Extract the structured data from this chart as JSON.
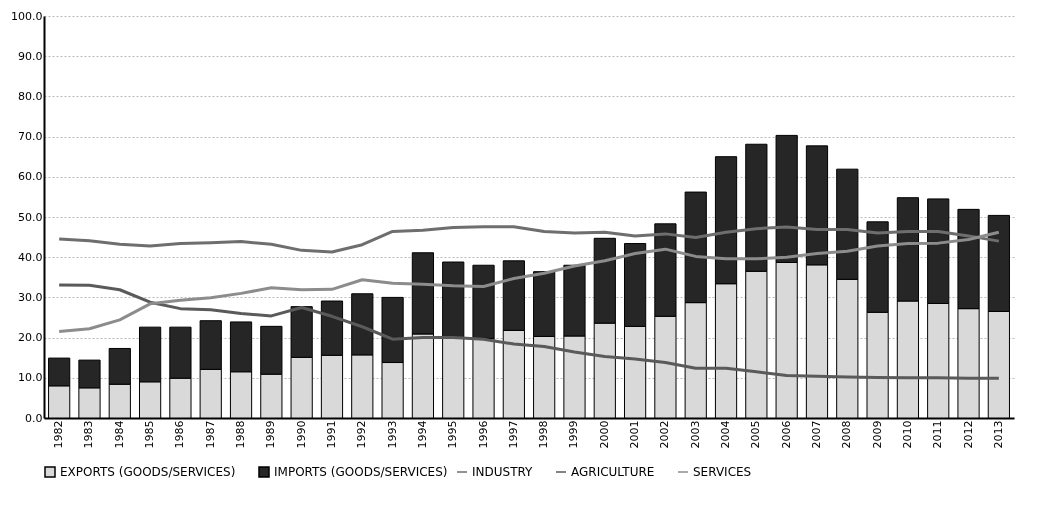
{
  "chart_data": {
    "type": "bar",
    "stacked": true,
    "categories": [
      "1982",
      "1983",
      "1984",
      "1985",
      "1986",
      "1987",
      "1988",
      "1989",
      "1990",
      "1991",
      "1992",
      "1993",
      "1994",
      "1995",
      "1996",
      "1997",
      "1998",
      "1999",
      "2000",
      "2001",
      "2002",
      "2003",
      "2004",
      "2005",
      "2006",
      "2007",
      "2008",
      "2009",
      "2010",
      "2011",
      "2012",
      "2013"
    ],
    "series": [
      {
        "name": "EXPORTS (GOODS/SERVICES)",
        "color": "#d9d9d9",
        "values": [
          8.0,
          7.5,
          8.4,
          9.0,
          9.9,
          12.1,
          11.5,
          10.9,
          15.1,
          15.6,
          15.7,
          13.8,
          20.9,
          19.8,
          19.8,
          21.8,
          20.3,
          20.4,
          23.6,
          22.8,
          25.3,
          28.7,
          33.4,
          36.5,
          38.7,
          38.1,
          34.5,
          26.3,
          29.1,
          28.5,
          27.2,
          26.5
        ]
      },
      {
        "name": "IMPORTS (GOODS/SERVICES)",
        "color": "#262626",
        "values": [
          6.9,
          6.9,
          8.9,
          13.6,
          12.7,
          12.1,
          12.4,
          11.9,
          12.6,
          13.5,
          15.2,
          16.2,
          20.2,
          19.0,
          18.2,
          17.3,
          16.1,
          17.6,
          21.1,
          20.6,
          23.0,
          27.5,
          31.6,
          31.6,
          31.6,
          29.6,
          27.4,
          22.5,
          25.7,
          26.0,
          24.7,
          23.9
        ]
      },
      {
        "name": "INDUSTRY",
        "type": "line",
        "color": "#6e6e6e",
        "values": [
          44.5,
          44.1,
          43.2,
          42.8,
          43.4,
          43.6,
          43.9,
          43.2,
          41.7,
          41.3,
          43.1,
          46.4,
          46.7,
          47.4,
          47.6,
          47.6,
          46.4,
          46.0,
          46.2,
          45.3,
          45.8,
          44.9,
          46.2,
          47.1,
          47.5,
          46.9,
          46.9,
          46.0,
          46.4,
          46.4,
          45.3,
          44.0
        ]
      },
      {
        "name": "AGRICULTURE",
        "type": "line",
        "color": "#5a5a5a",
        "values": [
          33.1,
          33.0,
          31.9,
          28.8,
          27.2,
          26.9,
          26.0,
          25.4,
          27.5,
          25.3,
          22.7,
          19.6,
          20.0,
          20.0,
          19.6,
          18.4,
          17.8,
          16.4,
          15.3,
          14.7,
          13.8,
          12.4,
          12.4,
          11.5,
          10.6,
          10.4,
          10.2,
          10.1,
          10.0,
          10.0,
          9.9,
          9.9
        ]
      },
      {
        "name": "SERVICES",
        "type": "line",
        "color": "#8c8c8c",
        "values": [
          21.5,
          22.2,
          24.4,
          28.4,
          29.3,
          29.9,
          31.0,
          32.4,
          31.9,
          32.0,
          34.4,
          33.5,
          33.3,
          32.9,
          32.7,
          34.7,
          36.0,
          37.8,
          39.1,
          40.9,
          42.0,
          40.2,
          39.6,
          39.6,
          40.0,
          40.9,
          41.5,
          42.8,
          43.4,
          43.5,
          44.4,
          46.2
        ]
      }
    ],
    "ylim": [
      0,
      100
    ],
    "yticks": [
      {
        "value": 0,
        "label": "0.0"
      },
      {
        "value": 10,
        "label": "10.0"
      },
      {
        "value": 20,
        "label": "20.0"
      },
      {
        "value": 30,
        "label": "30.0"
      },
      {
        "value": 40,
        "label": "40.0"
      },
      {
        "value": 50,
        "label": "50.0"
      },
      {
        "value": 60,
        "label": "60.0"
      },
      {
        "value": 70,
        "label": "70.0"
      },
      {
        "value": 80,
        "label": "80.0"
      },
      {
        "value": 90,
        "label": "90.0"
      },
      {
        "value": 100,
        "label": "100.0"
      }
    ],
    "grid": "y",
    "legend": "bottom",
    "line_style": "solid",
    "marker": "none"
  }
}
